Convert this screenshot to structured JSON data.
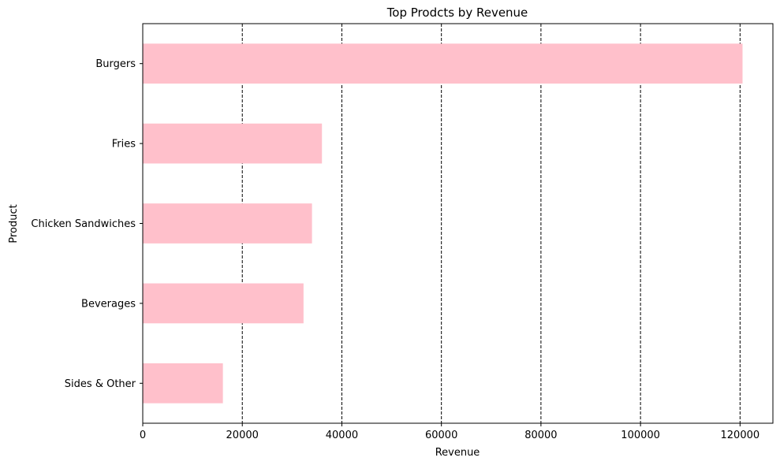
{
  "chart_data": {
    "type": "bar",
    "orientation": "horizontal",
    "title": "Top Prodcts by Revenue",
    "xlabel": "Revenue",
    "ylabel": "Product",
    "categories": [
      "Burgers",
      "Fries",
      "Chicken Sandwiches",
      "Beverages",
      "Sides & Other"
    ],
    "values": [
      120500,
      36000,
      34000,
      32300,
      16100
    ],
    "xlim": [
      0,
      126600
    ],
    "xticks": [
      0,
      20000,
      40000,
      60000,
      80000,
      100000,
      120000
    ],
    "xtick_labels": [
      "0",
      "20000",
      "40000",
      "60000",
      "80000",
      "100000",
      "120000"
    ],
    "grid": "x-axis dashed vertical lines",
    "bar_color": "#ffc0cb",
    "grid_color": "#000000"
  }
}
